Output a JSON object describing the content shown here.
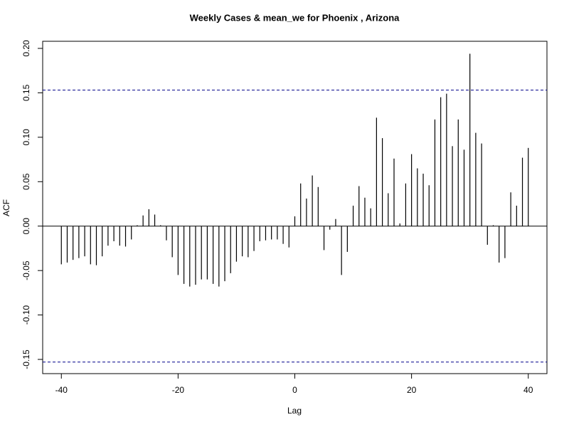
{
  "chart_data": {
    "type": "ccf",
    "title": "Weekly Cases & mean_we for Phoenix , Arizona",
    "xlabel": "Lag",
    "ylabel": "ACF",
    "x": [
      -40,
      -39,
      -38,
      -37,
      -36,
      -35,
      -34,
      -33,
      -32,
      -31,
      -30,
      -29,
      -28,
      -27,
      -26,
      -25,
      -24,
      -23,
      -22,
      -21,
      -20,
      -19,
      -18,
      -17,
      -16,
      -15,
      -14,
      -13,
      -12,
      -11,
      -10,
      -9,
      -8,
      -7,
      -6,
      -5,
      -4,
      -3,
      -2,
      -1,
      0,
      1,
      2,
      3,
      4,
      5,
      6,
      7,
      8,
      9,
      10,
      11,
      12,
      13,
      14,
      15,
      16,
      17,
      18,
      19,
      20,
      21,
      22,
      23,
      24,
      25,
      26,
      27,
      28,
      29,
      30,
      31,
      32,
      33,
      34,
      35,
      36,
      37,
      38,
      39,
      40
    ],
    "values": [
      -0.043,
      -0.041,
      -0.038,
      -0.036,
      -0.034,
      -0.043,
      -0.044,
      -0.034,
      -0.022,
      -0.017,
      -0.022,
      -0.023,
      -0.015,
      0.001,
      0.012,
      0.019,
      0.013,
      0.001,
      -0.016,
      -0.035,
      -0.055,
      -0.065,
      -0.068,
      -0.066,
      -0.06,
      -0.06,
      -0.065,
      -0.068,
      -0.062,
      -0.053,
      -0.04,
      -0.034,
      -0.035,
      -0.028,
      -0.017,
      -0.016,
      -0.015,
      -0.015,
      -0.02,
      -0.024,
      0.011,
      0.048,
      0.031,
      0.057,
      0.044,
      -0.027,
      -0.004,
      0.008,
      -0.055,
      -0.029,
      0.023,
      0.045,
      0.032,
      0.02,
      0.122,
      0.099,
      0.037,
      0.076,
      0.003,
      0.048,
      0.081,
      0.065,
      0.059,
      0.046,
      0.12,
      0.145,
      0.149,
      0.09,
      0.12,
      0.086,
      0.194,
      0.105,
      0.093,
      -0.021,
      0.001,
      -0.041,
      -0.036,
      0.038,
      0.023,
      0.077,
      0.088
    ],
    "color": "#000000",
    "ci_lines": [
      0.153,
      -0.153
    ],
    "ci_color": "#00008b",
    "xlim": [
      -43.2,
      43.2
    ],
    "ylim": [
      -0.166,
      0.208
    ],
    "xticks": [
      -40,
      -20,
      0,
      20,
      40
    ],
    "yticks": [
      -0.15,
      {
        "value": -0.1,
        "label": "-0.10"
      },
      -0.05,
      {
        "value": 0,
        "label": "0.00"
      },
      0.05,
      {
        "value": 0.1,
        "label": "0.10"
      },
      0.15,
      {
        "value": 0.2,
        "label": "0.20"
      }
    ]
  }
}
